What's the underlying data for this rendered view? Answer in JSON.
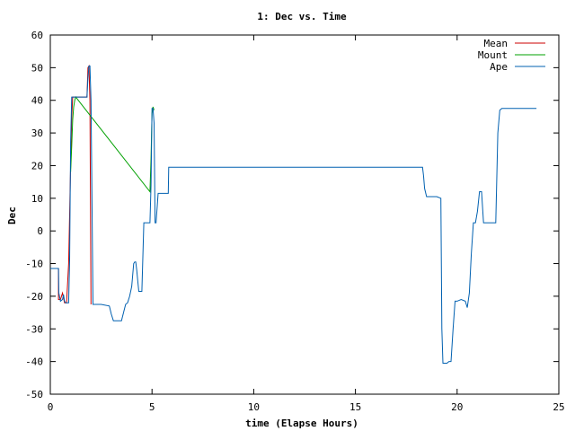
{
  "chart_data": {
    "type": "line",
    "title": "1: Dec vs. Time",
    "xlabel": "time (Elapse Hours)",
    "ylabel": "Dec",
    "xlim": [
      0,
      25
    ],
    "ylim": [
      -50,
      60
    ],
    "x_ticks": [
      "0",
      "5",
      "10",
      "15",
      "20",
      "25"
    ],
    "y_ticks": [
      "-50",
      "-40",
      "-30",
      "-20",
      "-10",
      "0",
      "10",
      "20",
      "30",
      "40",
      "50",
      "60"
    ],
    "grid": false,
    "legend_position": "top-right",
    "series": [
      {
        "name": "Mean",
        "color": "#cc0000",
        "x": [
          0,
          0.4,
          0.4,
          0.5,
          0.6,
          0.7,
          0.8,
          0.9,
          1.0,
          1.05,
          1.1,
          1.2,
          1.8,
          1.85,
          1.9,
          1.95,
          2.0
        ],
        "y": [
          -11.5,
          -11.5,
          -21,
          -21,
          -19,
          -22,
          -22,
          -10,
          20,
          35,
          41,
          41,
          41,
          50,
          50.5,
          40,
          -22.5
        ]
      },
      {
        "name": "Mount",
        "color": "#00a000",
        "x": [
          1.0,
          1.05,
          1.1,
          1.15,
          1.2,
          1.25,
          4.9,
          4.95,
          5.0,
          5.05,
          5.1
        ],
        "y": [
          18,
          26,
          34,
          38,
          40,
          41,
          12,
          22,
          36,
          38,
          37
        ]
      },
      {
        "name": "Ape",
        "color": "#0060b0",
        "x": [
          0,
          0.4,
          0.42,
          0.5,
          0.6,
          0.65,
          0.7,
          0.75,
          0.9,
          0.95,
          1.0,
          1.05,
          1.1,
          1.15,
          1.2,
          1.4,
          1.6,
          1.7,
          1.8,
          1.85,
          1.9,
          1.95,
          2.0,
          2.1,
          2.5,
          2.9,
          3.0,
          3.1,
          3.2,
          3.5,
          3.6,
          3.7,
          3.8,
          3.9,
          4.0,
          4.1,
          4.15,
          4.2,
          4.25,
          4.3,
          4.35,
          4.4,
          4.5,
          4.6,
          4.7,
          4.8,
          4.9,
          4.95,
          5.0,
          5.05,
          5.1,
          5.15,
          5.2,
          5.3,
          5.5,
          5.6,
          5.8,
          5.82,
          6.0,
          10.0,
          15.0,
          18.2,
          18.3,
          18.35,
          18.4,
          18.5,
          18.7,
          19.0,
          19.2,
          19.25,
          19.3,
          19.4,
          19.5,
          19.6,
          19.7,
          19.8,
          19.9,
          20.0,
          20.2,
          20.4,
          20.5,
          20.6,
          20.7,
          20.8,
          20.9,
          21.0,
          21.1,
          21.2,
          21.3,
          21.8,
          21.9,
          22.0,
          22.1,
          22.2,
          23.0,
          23.9
        ],
        "y": [
          -11.5,
          -11.5,
          -19,
          -21.5,
          -21,
          -19.5,
          -21.5,
          -22,
          -22,
          -9,
          27,
          41,
          41,
          41,
          41,
          41,
          41,
          41,
          41,
          47,
          50.5,
          50.5,
          40,
          -22.5,
          -22.5,
          -23,
          -25.5,
          -27.5,
          -27.5,
          -27.5,
          -25,
          -22.5,
          -22,
          -20,
          -17,
          -10,
          -9.5,
          -9.5,
          -12,
          -15.5,
          -18.5,
          -18.5,
          -18.5,
          2.5,
          2.5,
          2.5,
          2.5,
          14,
          37.5,
          37.5,
          33,
          2.5,
          2.5,
          11.5,
          11.5,
          11.5,
          11.5,
          19.5,
          19.5,
          19.5,
          19.5,
          19.5,
          19.5,
          17,
          13,
          10.5,
          10.5,
          10.5,
          10,
          -30,
          -40.5,
          -40.5,
          -40.5,
          -40,
          -40,
          -30,
          -21.5,
          -21.5,
          -21,
          -21.5,
          -23.5,
          -19,
          -7,
          2.5,
          2.5,
          6,
          12,
          12,
          2.5,
          2.5,
          2.5,
          30,
          37,
          37.5,
          37.5,
          37.5
        ]
      }
    ]
  }
}
